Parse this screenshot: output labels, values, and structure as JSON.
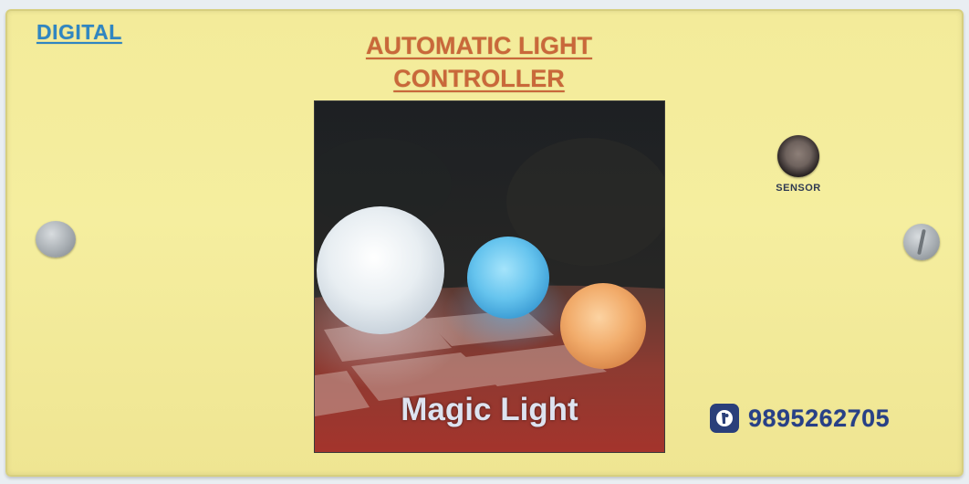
{
  "panel": {
    "brand": "DIGITAL",
    "title_line1": "AUTOMATIC LIGHT",
    "title_line2": "CONTROLLER",
    "sensor_label": "SENSOR",
    "phone_icon": "phone-icon",
    "phone_number": "9895262705"
  },
  "photo": {
    "caption": "Magic Light",
    "globes": [
      {
        "name": "white-globe",
        "color": "#e6ecf2"
      },
      {
        "name": "blue-globe",
        "color": "#6ec9ef"
      },
      {
        "name": "orange-globe",
        "color": "#f3b06d"
      }
    ]
  },
  "colors": {
    "panel": "#f4ec9c",
    "brand": "#2f86c2",
    "title": "#c9683a",
    "phone": "#274087"
  }
}
